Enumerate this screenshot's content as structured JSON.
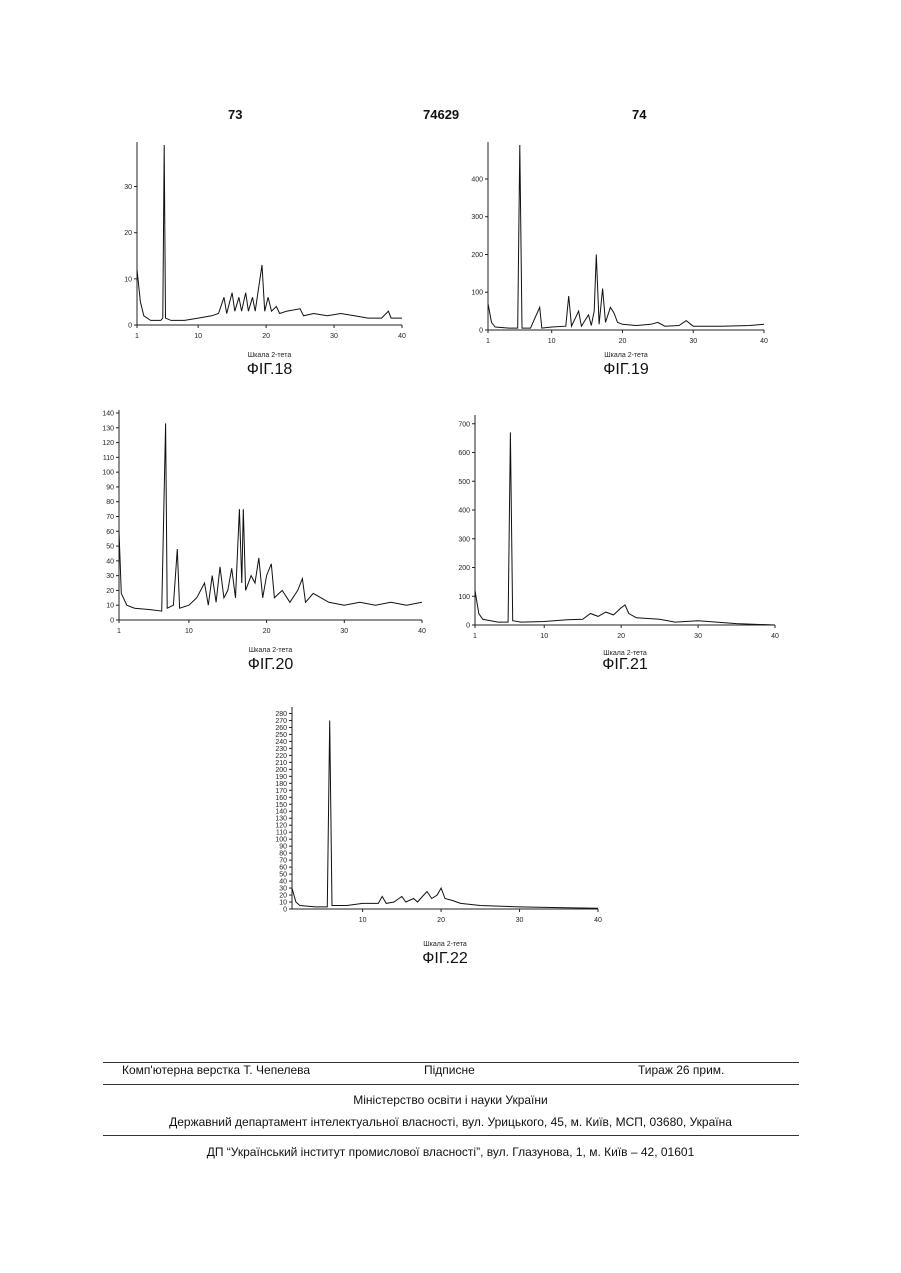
{
  "header": {
    "left": "73",
    "center": "74629",
    "right": "74"
  },
  "chart_data": [
    {
      "type": "line",
      "caption": "ФІГ.18",
      "x_label": "Шкала 2-тета",
      "xlim": [
        1,
        40
      ],
      "ylim": [
        0,
        39
      ],
      "xticks": [
        1,
        10,
        20,
        30,
        40
      ],
      "yticks": [
        0,
        10,
        20,
        30
      ],
      "color": "#111111",
      "x": [
        1,
        1.5,
        2,
        3,
        4.5,
        4.8,
        5,
        5.2,
        6,
        8,
        10,
        12,
        13,
        13.8,
        14.2,
        15,
        15.4,
        16,
        16.4,
        17,
        17.4,
        18,
        18.4,
        19.4,
        19.8,
        20.3,
        20.8,
        21.5,
        22,
        23,
        25,
        25.5,
        27,
        29,
        31,
        33,
        35,
        37,
        38,
        38.4,
        40
      ],
      "values": [
        12,
        5,
        2,
        1,
        1,
        1.5,
        39,
        1.5,
        1,
        1,
        1.5,
        2,
        2.5,
        6,
        2.5,
        7,
        3,
        6,
        3,
        7,
        3,
        6,
        3,
        13,
        3,
        6,
        3,
        4,
        2.5,
        3,
        3.5,
        2,
        2.5,
        2,
        2.5,
        2,
        1.5,
        1.5,
        3,
        1.5,
        1.5
      ]
    },
    {
      "type": "line",
      "caption": "ФІГ.19",
      "x_label": "Шкала 2-тета",
      "xlim": [
        1,
        40
      ],
      "ylim": [
        0,
        490
      ],
      "xticks": [
        1,
        10,
        20,
        30,
        40
      ],
      "yticks": [
        0,
        100,
        200,
        300,
        400
      ],
      "color": "#111111",
      "x": [
        1,
        1.5,
        2,
        4,
        5.2,
        5.5,
        5.8,
        7,
        8.3,
        8.6,
        10,
        12,
        12.4,
        12.8,
        13.8,
        14.2,
        15.2,
        15.6,
        16,
        16.3,
        16.7,
        17.2,
        17.6,
        18.3,
        18.8,
        19.3,
        20,
        22,
        24,
        25,
        26,
        28,
        29,
        30,
        34,
        38,
        40
      ],
      "values": [
        70,
        20,
        8,
        5,
        5,
        490,
        5,
        5,
        60,
        5,
        8,
        10,
        90,
        10,
        50,
        10,
        40,
        12,
        50,
        200,
        15,
        110,
        20,
        60,
        45,
        20,
        15,
        12,
        15,
        20,
        10,
        12,
        25,
        10,
        10,
        12,
        15
      ]
    },
    {
      "type": "line",
      "caption": "ФІГ.20",
      "x_label": "Шкала 2-тета",
      "xlim": [
        1,
        40
      ],
      "ylim": [
        0,
        140
      ],
      "xticks": [
        1,
        10,
        20,
        30,
        40
      ],
      "yticks": [
        0,
        10,
        20,
        30,
        40,
        50,
        60,
        70,
        80,
        90,
        100,
        110,
        120,
        130,
        140
      ],
      "color": "#111111",
      "x": [
        1,
        1.3,
        2,
        3,
        5,
        6.5,
        7,
        7.2,
        8,
        8.5,
        8.8,
        10,
        11,
        12,
        12.5,
        13,
        13.5,
        14,
        14.5,
        15,
        15.5,
        16,
        16.5,
        16.8,
        17,
        17.3,
        18,
        18.5,
        19,
        19.5,
        20,
        20.6,
        21,
        22,
        23,
        24,
        24.6,
        25,
        26,
        27,
        28,
        30,
        32,
        34,
        36,
        38,
        40
      ],
      "values": [
        60,
        18,
        10,
        8,
        7,
        6,
        133,
        8,
        10,
        48,
        8,
        10,
        15,
        25,
        10,
        30,
        12,
        36,
        15,
        20,
        35,
        15,
        75,
        25,
        75,
        20,
        30,
        25,
        42,
        15,
        30,
        38,
        15,
        20,
        12,
        20,
        28,
        12,
        18,
        15,
        12,
        10,
        12,
        10,
        12,
        10,
        12
      ]
    },
    {
      "type": "line",
      "caption": "ФІГ.21",
      "x_label": "Шкала 2-тета",
      "xlim": [
        1,
        40
      ],
      "ylim": [
        0,
        720
      ],
      "xticks": [
        1,
        10,
        20,
        30,
        40
      ],
      "yticks": [
        0,
        100,
        200,
        300,
        400,
        500,
        600,
        700
      ],
      "color": "#111111",
      "x": [
        1,
        1.5,
        2,
        4,
        5.3,
        5.6,
        5.9,
        7,
        10,
        13,
        15,
        16,
        17,
        18,
        19,
        20,
        20.5,
        21,
        22,
        25,
        27,
        30,
        35,
        40
      ],
      "values": [
        120,
        40,
        20,
        10,
        10,
        670,
        15,
        10,
        12,
        18,
        20,
        40,
        30,
        45,
        35,
        60,
        70,
        40,
        25,
        20,
        10,
        15,
        5,
        0
      ]
    },
    {
      "type": "line",
      "caption": "ФІГ.22",
      "x_label": "Шкала 2-тета",
      "xlim": [
        1,
        40
      ],
      "ylim": [
        0,
        285
      ],
      "xticks": [
        10,
        20,
        30,
        40
      ],
      "yticks": [
        0,
        10,
        20,
        30,
        40,
        50,
        60,
        70,
        80,
        90,
        100,
        110,
        120,
        130,
        140,
        150,
        160,
        170,
        180,
        190,
        200,
        210,
        220,
        230,
        240,
        250,
        260,
        270,
        280
      ],
      "color": "#111111",
      "x": [
        1,
        1.5,
        2,
        4,
        5.5,
        5.8,
        6.1,
        8,
        10,
        12,
        12.5,
        13,
        14,
        15,
        15.5,
        16.5,
        17,
        17.8,
        18.2,
        18.8,
        19.5,
        20,
        20.5,
        21.5,
        22.5,
        25,
        30,
        35,
        40
      ],
      "values": [
        30,
        10,
        5,
        3,
        3,
        270,
        5,
        5,
        8,
        8,
        18,
        8,
        10,
        18,
        10,
        15,
        10,
        20,
        25,
        15,
        20,
        30,
        15,
        12,
        8,
        5,
        3,
        2,
        1
      ]
    }
  ],
  "footer": {
    "typesetter": "Комп'ютерна верстка Т. Чепелева",
    "subscription": "Підписне",
    "circulation": "Тираж 26 прим.",
    "ministry": "Міністерство освіти і науки України",
    "department": "Державний департамент інтелектуальної власності, вул. Урицького, 45, м. Київ, МСП, 03680, Україна",
    "institute": "ДП “Український інститут промислової власності”, вул. Глазунова, 1, м. Київ – 42, 01601"
  }
}
